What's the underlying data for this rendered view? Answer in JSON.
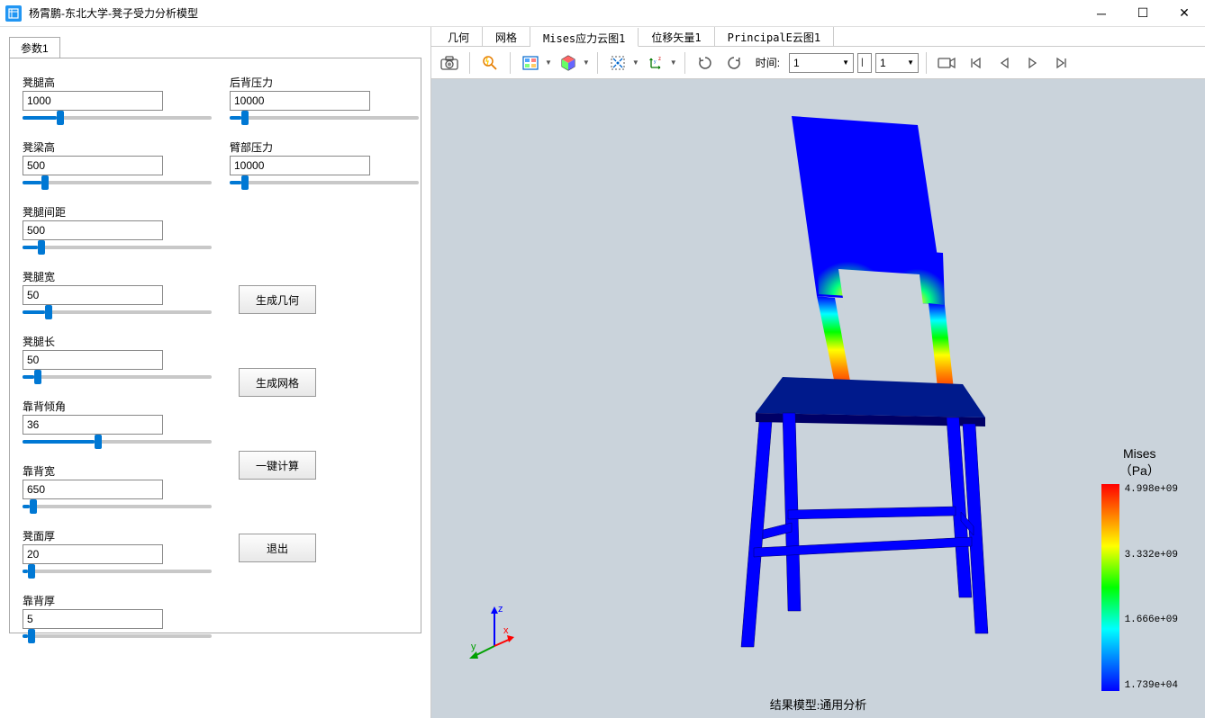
{
  "window": {
    "title": "杨霄鹏-东北大学-凳子受力分析模型"
  },
  "sidebar": {
    "tab_label": "参数1",
    "params_left": [
      {
        "label": "凳腿高",
        "value": "1000",
        "fill_pct": 18
      },
      {
        "label": "凳梁高",
        "value": "500",
        "fill_pct": 10
      },
      {
        "label": "凳腿间距",
        "value": "500",
        "fill_pct": 8
      },
      {
        "label": "凳腿宽",
        "value": "50",
        "fill_pct": 12
      },
      {
        "label": "凳腿长",
        "value": "50",
        "fill_pct": 6
      },
      {
        "label": "靠背倾角",
        "value": "36",
        "fill_pct": 38
      },
      {
        "label": "靠背宽",
        "value": "650",
        "fill_pct": 4
      },
      {
        "label": "凳面厚",
        "value": "20",
        "fill_pct": 3
      },
      {
        "label": "靠背厚",
        "value": "5",
        "fill_pct": 3
      }
    ],
    "params_right": [
      {
        "label": "后背压力",
        "value": "10000",
        "fill_pct": 6
      },
      {
        "label": "臂部压力",
        "value": "10000",
        "fill_pct": 6
      }
    ],
    "buttons": {
      "gen_geom": "生成几何",
      "gen_mesh": "生成网格",
      "compute": "一键计算",
      "exit": "退出"
    }
  },
  "view_tabs": [
    "几何",
    "网格",
    "Mises应力云图1",
    "位移矢量1",
    "PrincipalE云图1"
  ],
  "active_view_tab": 2,
  "toolbar": {
    "time_label": "时间:",
    "time_value": "1",
    "step_value": "1"
  },
  "viewport": {
    "background_color": "#cad3db",
    "result_label": "结果模型:通用分析",
    "triad": {
      "x_label": "x",
      "y_label": "y",
      "z_label": "z",
      "x_color": "#ff0000",
      "y_color": "#00c000",
      "z_color": "#0000ff"
    },
    "chair": {
      "base_color": "#0000ff",
      "seat_color": "#001a8c",
      "stress_gradient": [
        "#ff0000",
        "#ff8000",
        "#ffff00",
        "#00ff00",
        "#00ffff",
        "#0000ff"
      ]
    }
  },
  "legend": {
    "title_line1": "Mises",
    "title_line2": "（Pa）",
    "ticks": [
      "4.998e+09",
      "3.332e+09",
      "1.666e+09",
      "1.739e+04"
    ],
    "gradient_colors": [
      "#ff0000",
      "#ff8000",
      "#ffff00",
      "#00ff00",
      "#00ffff",
      "#0080ff",
      "#0000ff"
    ]
  }
}
